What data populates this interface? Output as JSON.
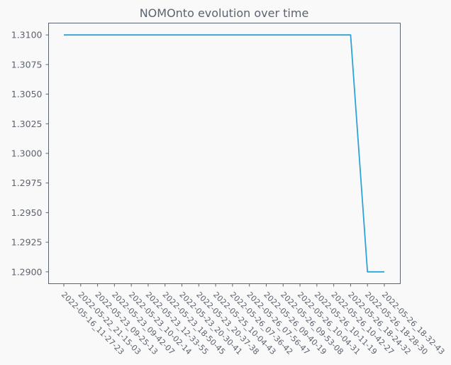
{
  "chart_data": {
    "type": "line",
    "title": "NOMOnto evolution over time",
    "xlabel": "",
    "ylabel": "",
    "categories": [
      "2022-05-16_11-27-23",
      "2022-05-22_21-15-03",
      "2022-05-23_09-25-13",
      "2022-05-23_09-42-07",
      "2022-05-23_10-02-14",
      "2022-05-23_12-33-55",
      "2022-05-23_18-50-45",
      "2022-05-23_20-30-41",
      "2022-05-23_20-37-38",
      "2022-05-25_10-04-43",
      "2022-05-26_07-36-42",
      "2022-05-26_07-56-47",
      "2022-05-26_09-40-19",
      "2022-05-26_09-53-08",
      "2022-05-26_10-04-31",
      "2022-05-26_10-11-19",
      "2022-05-26_10-42-27",
      "2022-05-26_18-24-32",
      "2022-05-26_18-28-30",
      "2022-05-26_18-32-43"
    ],
    "series": [
      {
        "values": [
          1.31,
          1.31,
          1.31,
          1.31,
          1.31,
          1.31,
          1.31,
          1.31,
          1.31,
          1.31,
          1.31,
          1.31,
          1.31,
          1.31,
          1.31,
          1.31,
          1.31,
          1.31,
          1.29,
          1.29
        ]
      }
    ],
    "yticks": [
      "1.2900",
      "1.2925",
      "1.2950",
      "1.2975",
      "1.3000",
      "1.3025",
      "1.3050",
      "1.3075",
      "1.3100"
    ],
    "ylim": [
      1.289,
      1.311
    ],
    "grid": false,
    "line_color": "#2ea3d6",
    "background": "#f9f9f9"
  }
}
